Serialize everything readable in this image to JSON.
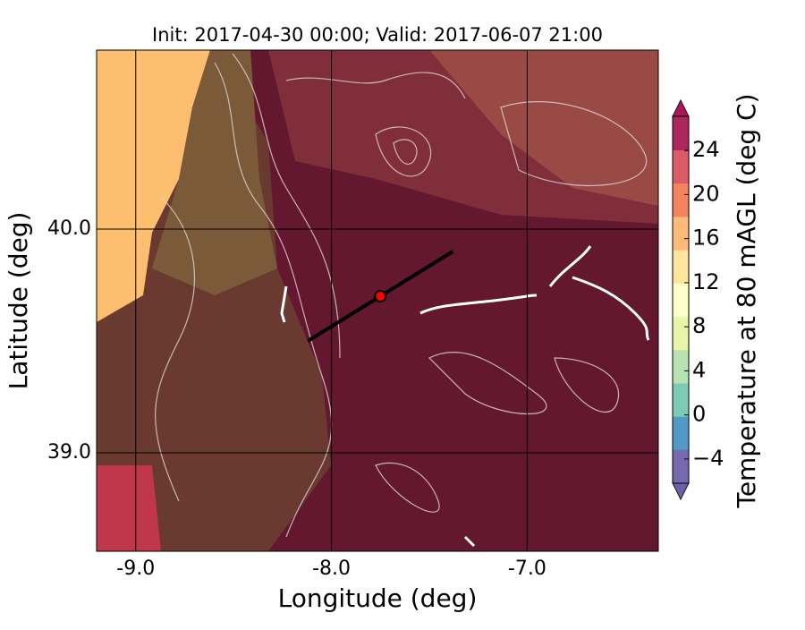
{
  "chart_data": {
    "type": "map",
    "title": "Init: 2017-04-30 00:00; Valid: 2017-06-07 21:00",
    "x_label": "Longitude (deg)",
    "y_label": "Latitude (deg)",
    "xlim": [
      -9.2,
      -6.33
    ],
    "ylim": [
      38.56,
      40.8
    ],
    "xticks": [
      {
        "value": -9,
        "label": "-9.0"
      },
      {
        "value": -8,
        "label": "-8.0"
      },
      {
        "value": -7,
        "label": "-7.0"
      }
    ],
    "yticks": [
      {
        "value": 39,
        "label": "39.0"
      },
      {
        "value": 40,
        "label": "40.0"
      }
    ],
    "grid": true,
    "transect": {
      "x": [
        -8.12,
        -7.38
      ],
      "y": [
        39.5,
        39.9
      ],
      "color": "#000000"
    },
    "point": {
      "x": -7.75,
      "y": 39.7,
      "color": "#ff0000"
    },
    "colorbar": {
      "label": "Temperature at 80 mAGL (deg C)",
      "lim": [
        -6.2,
        27.1
      ],
      "ticks": [
        {
          "value": -4,
          "label": "−4"
        },
        0,
        4,
        8,
        12,
        16,
        20,
        24
      ],
      "colormap": [
        "#5e4fa2",
        "#3288bd",
        "#66c2a5",
        "#abdda4",
        "#e6f598",
        "#ffffbf",
        "#fee08b",
        "#fdae61",
        "#f46d43",
        "#d53e4f",
        "#9e0142"
      ]
    }
  }
}
